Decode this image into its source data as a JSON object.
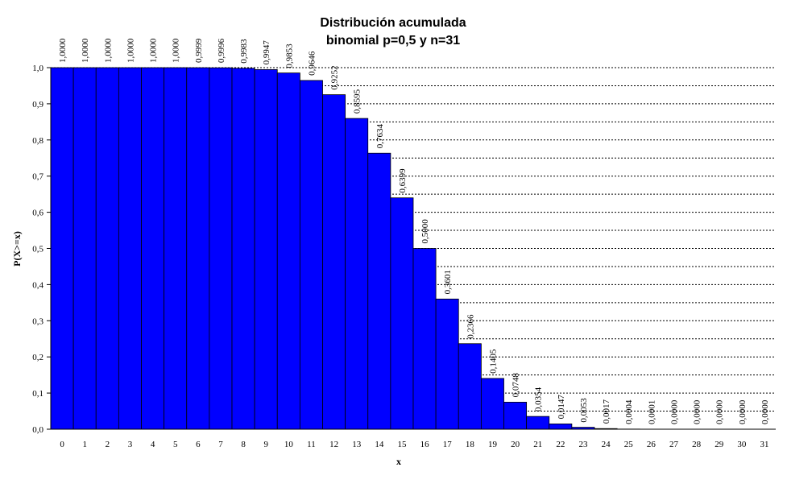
{
  "chart_data": {
    "type": "bar",
    "title": "Distribución acumulada binomial p=0,5 y n=31",
    "title_lines": [
      "Distribución acumulada",
      "binomial p=0,5 y n=31"
    ],
    "xlabel": "x",
    "ylabel": "P(X>=x)",
    "categories": [
      "0",
      "1",
      "2",
      "3",
      "4",
      "5",
      "6",
      "7",
      "8",
      "9",
      "10",
      "11",
      "12",
      "13",
      "14",
      "15",
      "16",
      "17",
      "18",
      "19",
      "20",
      "21",
      "22",
      "23",
      "24",
      "25",
      "26",
      "27",
      "28",
      "29",
      "30",
      "31"
    ],
    "values": [
      1.0,
      1.0,
      1.0,
      1.0,
      1.0,
      1.0,
      0.9999,
      0.9996,
      0.9983,
      0.9947,
      0.9853,
      0.9646,
      0.9252,
      0.8595,
      0.7634,
      0.6399,
      0.5,
      0.3601,
      0.2366,
      0.1405,
      0.0748,
      0.0354,
      0.0147,
      0.0053,
      0.0017,
      0.0004,
      0.0001,
      0.0,
      0.0,
      0.0,
      0.0,
      0.0
    ],
    "data_labels": [
      "1,0000",
      "1,0000",
      "1,0000",
      "1,0000",
      "1,0000",
      "1,0000",
      "0,9999",
      "0,9996",
      "0,9983",
      "0,9947",
      "0,9853",
      "0,9646",
      "0,9252",
      "0,8595",
      "0,7634",
      "0,6399",
      "0,5000",
      "0,3601",
      "0,2366",
      "0,1405",
      "0,0748",
      "0,0354",
      "0,0147",
      "0,0053",
      "0,0017",
      "0,0004",
      "0,0001",
      "0,0000",
      "0,0000",
      "0,0000",
      "0,0000",
      "0,0000"
    ],
    "ylim": [
      0,
      1.0
    ],
    "yticks": [
      "0,0",
      "0,1",
      "0,2",
      "0,3",
      "0,4",
      "0,5",
      "0,6",
      "0,7",
      "0,8",
      "0,9",
      "1,0"
    ],
    "grid": "horizontal dashed",
    "bar_color": "#0000ff",
    "legend": "none"
  }
}
